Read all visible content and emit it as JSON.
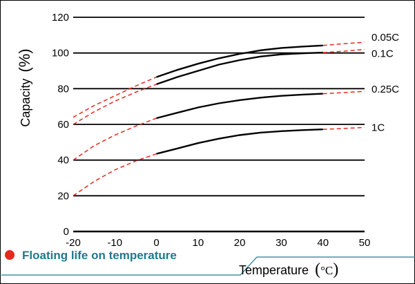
{
  "chart_data": {
    "type": "line",
    "title": "Floating life on temperature",
    "xlabel": "Temperature",
    "xunit": "°C",
    "ylabel": "Capacity",
    "yunit": "(%)",
    "xlim": [
      -20,
      50
    ],
    "ylim": [
      0,
      120
    ],
    "x_ticks": [
      "-20",
      "-10",
      "0",
      "10",
      "20",
      "30",
      "40",
      "50"
    ],
    "y_ticks": [
      "0",
      "20",
      "40",
      "60",
      "80",
      "100",
      "120"
    ],
    "grid": "horizontal",
    "solid_range": [
      0,
      40
    ],
    "series": [
      {
        "name": "0.05C",
        "x": [
          -20,
          -15,
          -10,
          -5,
          0,
          5,
          10,
          15,
          20,
          25,
          30,
          35,
          40,
          45,
          50
        ],
        "y": [
          64,
          70.5,
          76,
          81.5,
          86.5,
          90.5,
          94,
          97,
          99.5,
          101.5,
          102.8,
          103.6,
          104.2,
          105.2,
          106
        ]
      },
      {
        "name": "0.1C",
        "x": [
          -20,
          -15,
          -10,
          -5,
          0,
          5,
          10,
          15,
          20,
          25,
          30,
          35,
          40,
          45,
          50
        ],
        "y": [
          60,
          67,
          73,
          78,
          82.5,
          86.5,
          90,
          93.5,
          96,
          98,
          99.2,
          99.8,
          100.2,
          101,
          102
        ]
      },
      {
        "name": "0.25C",
        "x": [
          -20,
          -15,
          -10,
          -5,
          0,
          5,
          10,
          15,
          20,
          25,
          30,
          35,
          40,
          45,
          50
        ],
        "y": [
          40,
          48,
          54,
          59,
          63.5,
          66.5,
          69.5,
          71.8,
          73.6,
          75,
          76,
          76.7,
          77.2,
          77.8,
          78.5
        ]
      },
      {
        "name": "1C",
        "x": [
          -20,
          -15,
          -10,
          -5,
          0,
          5,
          10,
          15,
          20,
          25,
          30,
          35,
          40,
          45,
          50
        ],
        "y": [
          20,
          28,
          34.5,
          39.5,
          43.5,
          46.5,
          49.5,
          52,
          54,
          55.4,
          56.2,
          56.8,
          57.2,
          57.7,
          58.3
        ]
      }
    ]
  },
  "colors": {
    "solid_line": "#000000",
    "extrapolated_line": "#e8281e",
    "gridline": "#000000",
    "footer_title": "#1f7a8c",
    "footer_dot": "#e8281e",
    "footer_rule": "#1f7a8c"
  }
}
